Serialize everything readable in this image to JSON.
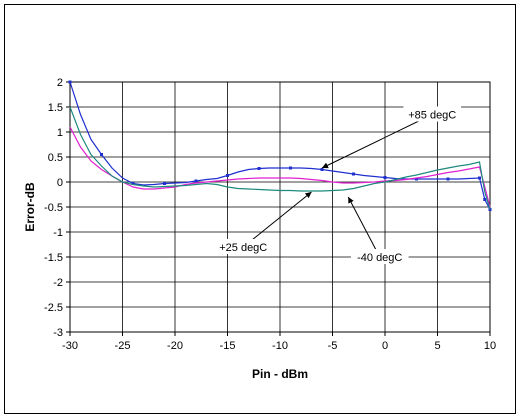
{
  "chart_data": {
    "type": "line",
    "title": "",
    "xlabel": "Pin - dBm",
    "ylabel": "Error-dB",
    "xlim": [
      -30,
      10
    ],
    "ylim": [
      -3,
      2
    ],
    "xticks": [
      "-30",
      "-25",
      "-20",
      "-15",
      "-10",
      "-5",
      "0",
      "5",
      "10"
    ],
    "yticks": [
      "2",
      "1.5",
      "1",
      "0.5",
      "0",
      "-0.5",
      "-1",
      "-1.5",
      "-2",
      "-2.5",
      "-3"
    ],
    "grid": true,
    "legend": "none",
    "series": [
      {
        "name": "+85 degC",
        "color": "#1f2fd0",
        "x": [
          -30,
          -29,
          -28,
          -27,
          -26,
          -25,
          -24,
          -23,
          -22,
          -21,
          -20,
          -19,
          -18,
          -17,
          -16,
          -15,
          -14,
          -13,
          -12,
          -11,
          -10,
          -9,
          -8,
          -7,
          -6,
          -5,
          -4,
          -3,
          -2,
          -1,
          0,
          1,
          2,
          3,
          4,
          5,
          6,
          7,
          8,
          9,
          9.5,
          10
        ],
        "y": [
          2.0,
          1.35,
          0.85,
          0.55,
          0.28,
          0.08,
          -0.03,
          -0.06,
          -0.05,
          -0.03,
          -0.02,
          -0.01,
          0.02,
          0.05,
          0.07,
          0.13,
          0.2,
          0.25,
          0.27,
          0.28,
          0.28,
          0.28,
          0.28,
          0.27,
          0.25,
          0.22,
          0.19,
          0.16,
          0.13,
          0.11,
          0.09,
          0.07,
          0.06,
          0.06,
          0.06,
          0.06,
          0.06,
          0.06,
          0.07,
          0.08,
          -0.35,
          -0.55
        ]
      },
      {
        "name": "+25 degC",
        "color": "#e020d0",
        "x": [
          -30,
          -29,
          -28,
          -27,
          -26,
          -25,
          -24,
          -23,
          -22,
          -21,
          -20,
          -19,
          -18,
          -17,
          -16,
          -15,
          -14,
          -13,
          -12,
          -11,
          -10,
          -9,
          -8,
          -7,
          -6,
          -5,
          -4,
          -3,
          -2,
          -1,
          0,
          1,
          2,
          3,
          4,
          5,
          6,
          7,
          8,
          9,
          9.5,
          10
        ],
        "y": [
          1.1,
          0.7,
          0.42,
          0.25,
          0.12,
          0.0,
          -0.1,
          -0.14,
          -0.14,
          -0.12,
          -0.1,
          -0.05,
          -0.02,
          0.0,
          0.02,
          0.04,
          0.06,
          0.07,
          0.08,
          0.08,
          0.08,
          0.08,
          0.07,
          0.05,
          0.03,
          0.0,
          -0.02,
          -0.02,
          -0.01,
          0.0,
          0.02,
          0.03,
          0.05,
          0.08,
          0.11,
          0.15,
          0.19,
          0.22,
          0.26,
          0.3,
          -0.1,
          -0.5
        ]
      },
      {
        "name": "-40 degC",
        "color": "#1f8a80",
        "x": [
          -30,
          -29,
          -28,
          -27,
          -26,
          -25,
          -24,
          -23,
          -22,
          -21,
          -20,
          -19,
          -18,
          -17,
          -16,
          -15,
          -14,
          -13,
          -12,
          -11,
          -10,
          -9,
          -8,
          -7,
          -6,
          -5,
          -4,
          -3,
          -2,
          -1,
          0,
          1,
          2,
          3,
          4,
          5,
          6,
          7,
          8,
          9,
          9.5,
          10
        ],
        "y": [
          1.5,
          0.95,
          0.55,
          0.32,
          0.12,
          0.0,
          -0.05,
          -0.08,
          -0.1,
          -0.09,
          -0.08,
          -0.07,
          -0.05,
          -0.03,
          -0.05,
          -0.1,
          -0.13,
          -0.14,
          -0.15,
          -0.16,
          -0.17,
          -0.17,
          -0.18,
          -0.18,
          -0.18,
          -0.17,
          -0.16,
          -0.13,
          -0.08,
          -0.03,
          0.0,
          0.05,
          0.1,
          0.14,
          0.19,
          0.24,
          0.28,
          0.32,
          0.35,
          0.4,
          -0.2,
          -0.55
        ]
      }
    ],
    "annotations": [
      {
        "text": "+85 degC",
        "series": "+85 degC",
        "at": [
          -6,
          0.28
        ],
        "label_at": [
          4.5,
          1.35
        ]
      },
      {
        "text": "+25 degC",
        "series": "+25 degC",
        "at": [
          -7,
          -0.2
        ],
        "label_at": [
          -13.5,
          -1.3
        ]
      },
      {
        "text": "-40 degC",
        "series": "-40 degC",
        "at": [
          -3.5,
          -0.3
        ],
        "label_at": [
          -0.5,
          -1.5
        ]
      }
    ]
  }
}
